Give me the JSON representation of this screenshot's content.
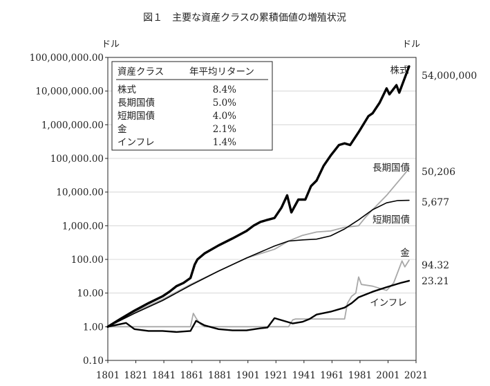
{
  "chart_data": {
    "type": "line",
    "title": "図１　主要な資産クラスの累積価値の増殖状況",
    "y_unit_left": "ドル",
    "y_unit_right": "ドル",
    "y_scale": "log",
    "ylim": [
      0.1,
      100000000
    ],
    "y_ticks": [
      "100,000,000.00",
      "10,000,000.00",
      "1,000,000.00",
      "100,000.00",
      "10,000.00",
      "1,000.00",
      "100.00",
      "10.00",
      "1.00",
      "0.10"
    ],
    "xlim": [
      1801,
      2021
    ],
    "x_ticks": [
      "1801",
      "1821",
      "1841",
      "1861",
      "1881",
      "1901",
      "1921",
      "1941",
      "1961",
      "1981",
      "2001",
      "2021"
    ],
    "grid": "horizontal",
    "legend_table": {
      "header_class": "資産クラス",
      "header_return": "年平均リターン",
      "rows": [
        {
          "name": "株式",
          "value": "8.4%"
        },
        {
          "name": "長期国債",
          "value": "5.0%"
        },
        {
          "name": "短期国債",
          "value": "4.0%"
        },
        {
          "name": "金",
          "value": "2.1%"
        },
        {
          "name": "インフレ",
          "value": "1.4%"
        }
      ]
    },
    "series": [
      {
        "name": "株式",
        "end_label": "54,000,000",
        "color": "#000000",
        "x": [
          1801,
          1810,
          1820,
          1830,
          1840,
          1845,
          1850,
          1855,
          1860,
          1863,
          1865,
          1870,
          1880,
          1890,
          1900,
          1905,
          1910,
          1915,
          1920,
          1925,
          1929,
          1932,
          1937,
          1942,
          1946,
          1950,
          1955,
          1960,
          1966,
          1970,
          1974,
          1980,
          1987,
          1990,
          1995,
          2000,
          2002,
          2007,
          2009,
          2013,
          2016
        ],
        "y": [
          1,
          1.7,
          3,
          5,
          8,
          11,
          16,
          20,
          28,
          70,
          100,
          150,
          260,
          420,
          700,
          1000,
          1300,
          1500,
          1700,
          3500,
          8000,
          2500,
          6000,
          6000,
          15000,
          22000,
          60000,
          120000,
          250000,
          280000,
          250000,
          600000,
          1800000,
          2200000,
          4500000,
          12000000,
          8000000,
          15000000,
          9000000,
          25000000,
          54000000
        ]
      },
      {
        "name": "長期国債",
        "end_label": "50,206",
        "color": "#a8a8a8",
        "x": [
          1801,
          1820,
          1840,
          1860,
          1880,
          1900,
          1920,
          1930,
          1940,
          1950,
          1960,
          1970,
          1980,
          1985,
          1990,
          2000,
          2010,
          2016
        ],
        "y": [
          1,
          2.7,
          6.5,
          18,
          45,
          110,
          200,
          350,
          520,
          650,
          700,
          900,
          1000,
          1800,
          3000,
          8000,
          25000,
          50206
        ]
      },
      {
        "name": "短期国債",
        "end_label": "5,677",
        "color": "#000000",
        "x": [
          1801,
          1820,
          1840,
          1860,
          1880,
          1900,
          1920,
          1930,
          1940,
          1950,
          1960,
          1970,
          1980,
          1990,
          2000,
          2008,
          2016
        ],
        "y": [
          1,
          2.5,
          6,
          17,
          45,
          110,
          250,
          350,
          380,
          400,
          500,
          800,
          1500,
          3000,
          4800,
          5600,
          5677
        ]
      },
      {
        "name": "金",
        "end_label": "94.32",
        "color": "#a8a8a8",
        "x": [
          1801,
          1860,
          1862,
          1864,
          1867,
          1870,
          1930,
          1933,
          1935,
          1970,
          1972,
          1975,
          1978,
          1980,
          1982,
          1990,
          2000,
          2005,
          2011,
          2013,
          2016
        ],
        "y": [
          1,
          1,
          2.5,
          1.8,
          1.2,
          1,
          1,
          1.6,
          1.7,
          1.7,
          5,
          8,
          10,
          30,
          18,
          16,
          12,
          20,
          90,
          60,
          94.32
        ]
      },
      {
        "name": "インフレ",
        "end_label": "23.21",
        "color": "#000000",
        "x": [
          1801,
          1814,
          1820,
          1830,
          1840,
          1850,
          1860,
          1864,
          1870,
          1880,
          1890,
          1900,
          1910,
          1915,
          1920,
          1933,
          1940,
          1945,
          1950,
          1960,
          1970,
          1975,
          1980,
          1990,
          2000,
          2010,
          2016
        ],
        "y": [
          1,
          1.3,
          0.85,
          0.75,
          0.75,
          0.7,
          0.75,
          1.5,
          1.1,
          0.85,
          0.78,
          0.78,
          0.9,
          0.95,
          1.8,
          1.25,
          1.4,
          1.7,
          2.3,
          2.8,
          3.7,
          5,
          7.5,
          11,
          15,
          20,
          23.21
        ]
      }
    ]
  }
}
